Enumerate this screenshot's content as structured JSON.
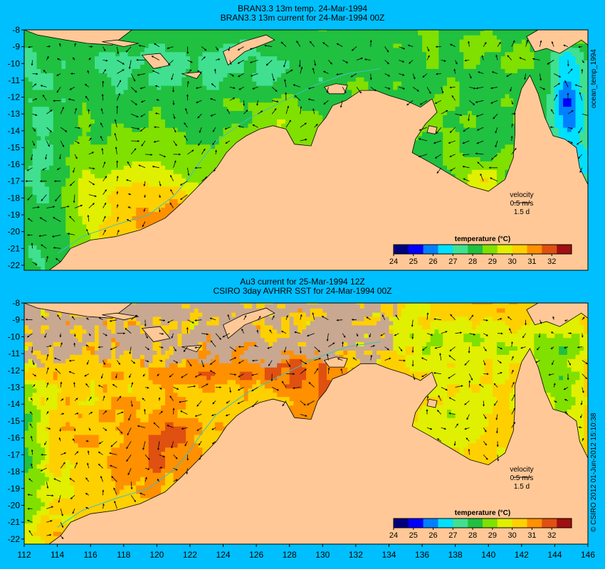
{
  "panels": [
    {
      "title_lines": [
        "BRAN3.3 13m temp. 24-Mar-1994",
        "BRAN3.3 13m current for 24-Mar-1994 00Z"
      ],
      "side_label": "ocean_temp_1994",
      "velocity_label": "velocity",
      "velocity_scale": "0.5 m/s",
      "velocity_time": "1.5 d",
      "temp_field": "model"
    },
    {
      "title_lines": [
        "Au3 current for 25-Mar-1994 12Z",
        "CSIRO 3day AVHRR SST for 24-Mar-1994 00Z"
      ],
      "side_label": "",
      "velocity_label": "velocity",
      "velocity_scale": "0.5 m/s",
      "velocity_time": "1.5 d",
      "temp_field": "satellite"
    }
  ],
  "credit": "© CSIRO 2012  01-Jun-2012 15:10:38",
  "colors": {
    "background": "#00bfff",
    "land": "#ffc896",
    "missing": "#c8a890",
    "coast": "#000000",
    "isobath": "#40c0c0",
    "arrow": "#000000"
  },
  "chart_data": {
    "type": "heatmap",
    "x_axis": {
      "range": [
        112,
        146
      ],
      "ticks": [
        112,
        114,
        116,
        118,
        120,
        122,
        124,
        126,
        128,
        130,
        132,
        134,
        136,
        138,
        140,
        142,
        144,
        146
      ]
    },
    "y_axis": {
      "range": [
        -22.3,
        -8
      ],
      "ticks": [
        -8,
        -9,
        -10,
        -11,
        -12,
        -13,
        -14,
        -15,
        -16,
        -17,
        -18,
        -19,
        -20,
        -21,
        -22
      ]
    },
    "colorbar": {
      "label": "temperature (°C)",
      "range": [
        24,
        33
      ],
      "ticks": [
        24,
        25,
        26,
        27,
        28,
        29,
        30,
        31,
        32
      ],
      "colors": [
        "#00007f",
        "#0000ff",
        "#0080ff",
        "#00e0ff",
        "#40e090",
        "#20c040",
        "#80e000",
        "#e0f000",
        "#ffd000",
        "#ff9000",
        "#e05010",
        "#a01010"
      ]
    },
    "value_unit": "°C",
    "current_units": "m/s"
  }
}
